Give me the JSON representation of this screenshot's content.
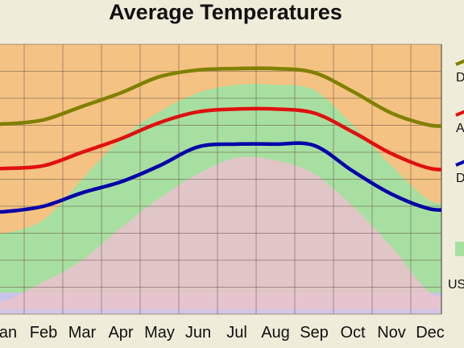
{
  "chart_data": {
    "type": "line",
    "title": "Average Temperatures",
    "categories": [
      "Jan",
      "Feb",
      "Mar",
      "Apr",
      "May",
      "Jun",
      "Jul",
      "Aug",
      "Sep",
      "Oct",
      "Nov",
      "Dec"
    ],
    "category_labels": [
      "an",
      "Feb",
      "Mar",
      "Apr",
      "May",
      "Jun",
      "Jul",
      "Aug",
      "Sep",
      "Oct",
      "Nov",
      "Dec"
    ],
    "grid": true,
    "ylim": [
      0,
      100
    ],
    "series": [
      {
        "name": "",
        "color": "#808000",
        "values": [
          70.5,
          72,
          77,
          82,
          88,
          90.5,
          91,
          91,
          89.5,
          82.5,
          74.5,
          70
        ]
      },
      {
        "name": "",
        "color": "#e01010",
        "values": [
          54,
          55,
          60,
          65,
          71,
          75,
          76,
          76,
          74.5,
          67.5,
          59.5,
          54
        ]
      },
      {
        "name": "",
        "color": "#0000aa",
        "values": [
          38,
          40,
          45,
          49,
          55,
          62,
          63,
          63,
          62.5,
          53,
          44.5,
          39
        ]
      }
    ],
    "bands": {
      "top_green_boundary": [
        30,
        35,
        50,
        65,
        75,
        82,
        85,
        85,
        83,
        70,
        55,
        42
      ],
      "pink_boundary": [
        5,
        12,
        20,
        32,
        43,
        52,
        58,
        57,
        52,
        40,
        25,
        8
      ],
      "colors": {
        "orange": "#f4c283",
        "green": "#a7dfa0",
        "pink": "#e8c3cc",
        "lavender": "#c9c4ec"
      }
    },
    "legend": {
      "placement": "right",
      "entries": [
        {
          "label": "D",
          "color": "#808000"
        },
        {
          "label": "A",
          "color": "#e01010"
        },
        {
          "label": "D",
          "color": "#0000aa"
        },
        {
          "label": "US",
          "color": "#a7dfa0"
        }
      ]
    }
  }
}
